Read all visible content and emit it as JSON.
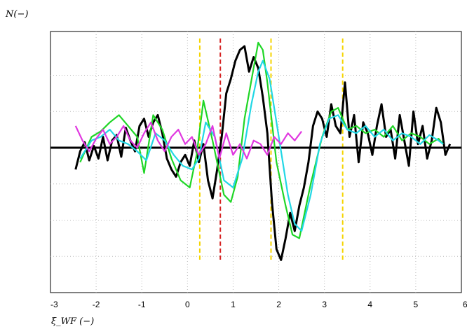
{
  "chart_data": {
    "type": "line",
    "title": "",
    "ylabel": "N(−)",
    "xlabel": "ξ_WF (−)",
    "xlim": [
      -3,
      6
    ],
    "ylim": [
      -4,
      3
    ],
    "xticks": [
      "-3",
      "-2",
      "-1",
      "0",
      "1",
      "2",
      "3",
      "4",
      "5",
      "6"
    ],
    "grid": true,
    "vlines": [
      {
        "x": 0.27,
        "color": "#f5d400"
      },
      {
        "x": 0.72,
        "color": "#d62020"
      },
      {
        "x": 1.83,
        "color": "#f5d400"
      },
      {
        "x": 3.4,
        "color": "#f5d400"
      }
    ],
    "series": [
      {
        "color": "#000000",
        "x": [
          -2.45,
          -2.35,
          -2.25,
          -2.15,
          -2.05,
          -1.95,
          -1.85,
          -1.75,
          -1.65,
          -1.55,
          -1.45,
          -1.35,
          -1.25,
          -1.15,
          -1.05,
          -0.95,
          -0.85,
          -0.75,
          -0.65,
          -0.55,
          -0.45,
          -0.35,
          -0.25,
          -0.15,
          -0.05,
          0.05,
          0.15,
          0.25,
          0.35,
          0.45,
          0.55,
          0.65,
          0.75,
          0.85,
          0.95,
          1.05,
          1.15,
          1.25,
          1.35,
          1.45,
          1.55,
          1.65,
          1.75,
          1.85,
          1.95,
          2.05,
          2.15,
          2.25,
          2.35,
          2.45,
          2.55,
          2.65,
          2.75,
          2.85,
          2.95,
          3.05,
          3.15,
          3.25,
          3.35,
          3.45,
          3.55,
          3.65,
          3.75,
          3.85,
          3.95,
          4.05,
          4.15,
          4.25,
          4.35,
          4.45,
          4.55,
          4.65,
          4.75,
          4.85,
          4.95,
          5.05,
          5.15,
          5.25,
          5.35,
          5.45,
          5.55,
          5.65,
          5.75
        ],
        "y": [
          -0.6,
          -0.1,
          0.15,
          -0.35,
          0.05,
          -0.3,
          0.3,
          -0.35,
          0.2,
          0.35,
          -0.25,
          0.55,
          0.2,
          -0.1,
          0.6,
          0.8,
          0.3,
          0.7,
          0.9,
          0.4,
          -0.3,
          -0.6,
          -0.8,
          -0.4,
          -0.2,
          -0.5,
          0.2,
          -0.4,
          0.1,
          -0.9,
          -1.4,
          -0.6,
          0.3,
          1.5,
          1.9,
          2.4,
          2.7,
          2.8,
          2.1,
          2.5,
          2.2,
          1.4,
          0.4,
          -1.5,
          -2.8,
          -3.1,
          -2.5,
          -1.8,
          -2.3,
          -1.6,
          -1.1,
          -0.4,
          0.6,
          1.0,
          0.8,
          0.3,
          1.2,
          0.6,
          0.4,
          1.8,
          0.3,
          0.9,
          -0.4,
          0.7,
          0.4,
          -0.2,
          0.6,
          1.2,
          0.3,
          0.5,
          -0.3,
          0.9,
          0.2,
          -0.5,
          1.0,
          0.1,
          0.6,
          -0.3,
          0.2,
          1.1,
          0.7,
          -0.2,
          0.1
        ]
      },
      {
        "color": "#1fd626",
        "x": [
          -2.35,
          -2.1,
          -1.9,
          -1.7,
          -1.5,
          -1.3,
          -1.1,
          -0.95,
          -0.75,
          -0.55,
          -0.35,
          -0.15,
          0.05,
          0.2,
          0.35,
          0.55,
          0.8,
          0.95,
          1.1,
          1.25,
          1.45,
          1.55,
          1.65,
          1.75,
          1.95,
          2.15,
          2.3,
          2.45,
          2.7,
          2.95,
          3.15,
          3.3,
          3.5,
          3.7,
          3.9,
          4.1,
          4.3,
          4.5,
          4.7,
          4.9,
          5.1,
          5.3,
          5.5,
          5.6
        ],
        "y": [
          -0.4,
          0.3,
          0.45,
          0.7,
          0.9,
          0.6,
          0.3,
          -0.7,
          0.9,
          0.5,
          -0.3,
          -0.9,
          -1.1,
          -0.2,
          1.3,
          0.2,
          -1.3,
          -1.5,
          -0.8,
          0.8,
          2.2,
          2.9,
          2.7,
          1.8,
          -0.4,
          -1.6,
          -2.4,
          -2.5,
          -1.0,
          0.3,
          1.0,
          1.1,
          0.5,
          0.6,
          0.4,
          0.5,
          0.3,
          0.6,
          0.2,
          0.4,
          0.3,
          0.1,
          0.25,
          0.1
        ]
      },
      {
        "color": "#21d7e5",
        "x": [
          -2.35,
          -2.1,
          -1.9,
          -1.7,
          -1.5,
          -1.3,
          -1.1,
          -0.9,
          -0.7,
          -0.5,
          -0.3,
          -0.1,
          0.1,
          0.25,
          0.4,
          0.6,
          0.8,
          1.0,
          1.2,
          1.4,
          1.55,
          1.65,
          1.8,
          2.0,
          2.2,
          2.35,
          2.5,
          2.7,
          2.9,
          3.1,
          3.3,
          3.5,
          3.7,
          3.9,
          4.1,
          4.3,
          4.5,
          4.7,
          4.9,
          5.1,
          5.3,
          5.5,
          5.6
        ],
        "y": [
          -0.3,
          0.2,
          0.3,
          0.5,
          0.2,
          0.1,
          -0.1,
          -0.35,
          0.4,
          0.2,
          -0.2,
          -0.5,
          -0.6,
          -0.3,
          0.7,
          0.3,
          -0.9,
          -1.1,
          -0.3,
          1.2,
          2.1,
          2.4,
          1.9,
          0.3,
          -1.3,
          -2.1,
          -2.3,
          -1.3,
          0.1,
          0.8,
          0.9,
          0.5,
          0.4,
          0.6,
          0.3,
          0.5,
          0.2,
          0.4,
          0.3,
          0.1,
          0.35,
          0.2,
          0.1
        ]
      },
      {
        "color": "#e038e0",
        "x": [
          -2.45,
          -2.3,
          -2.15,
          -2.0,
          -1.85,
          -1.7,
          -1.55,
          -1.4,
          -1.25,
          -1.1,
          -0.95,
          -0.8,
          -0.65,
          -0.5,
          -0.35,
          -0.2,
          -0.05,
          0.1,
          0.25,
          0.4,
          0.55,
          0.7,
          0.85,
          1.0,
          1.15,
          1.3,
          1.45,
          1.6,
          1.75,
          1.9,
          2.05,
          2.2,
          2.35,
          2.5
        ],
        "y": [
          0.6,
          0.2,
          -0.1,
          0.25,
          0.5,
          0.1,
          0.3,
          0.6,
          0.2,
          0.0,
          0.4,
          0.7,
          0.2,
          -0.1,
          0.3,
          0.5,
          0.1,
          0.3,
          -0.2,
          0.1,
          0.6,
          -0.3,
          0.4,
          -0.2,
          0.1,
          -0.3,
          0.2,
          0.1,
          -0.2,
          0.3,
          0.1,
          0.4,
          0.2,
          0.45
        ]
      }
    ]
  }
}
